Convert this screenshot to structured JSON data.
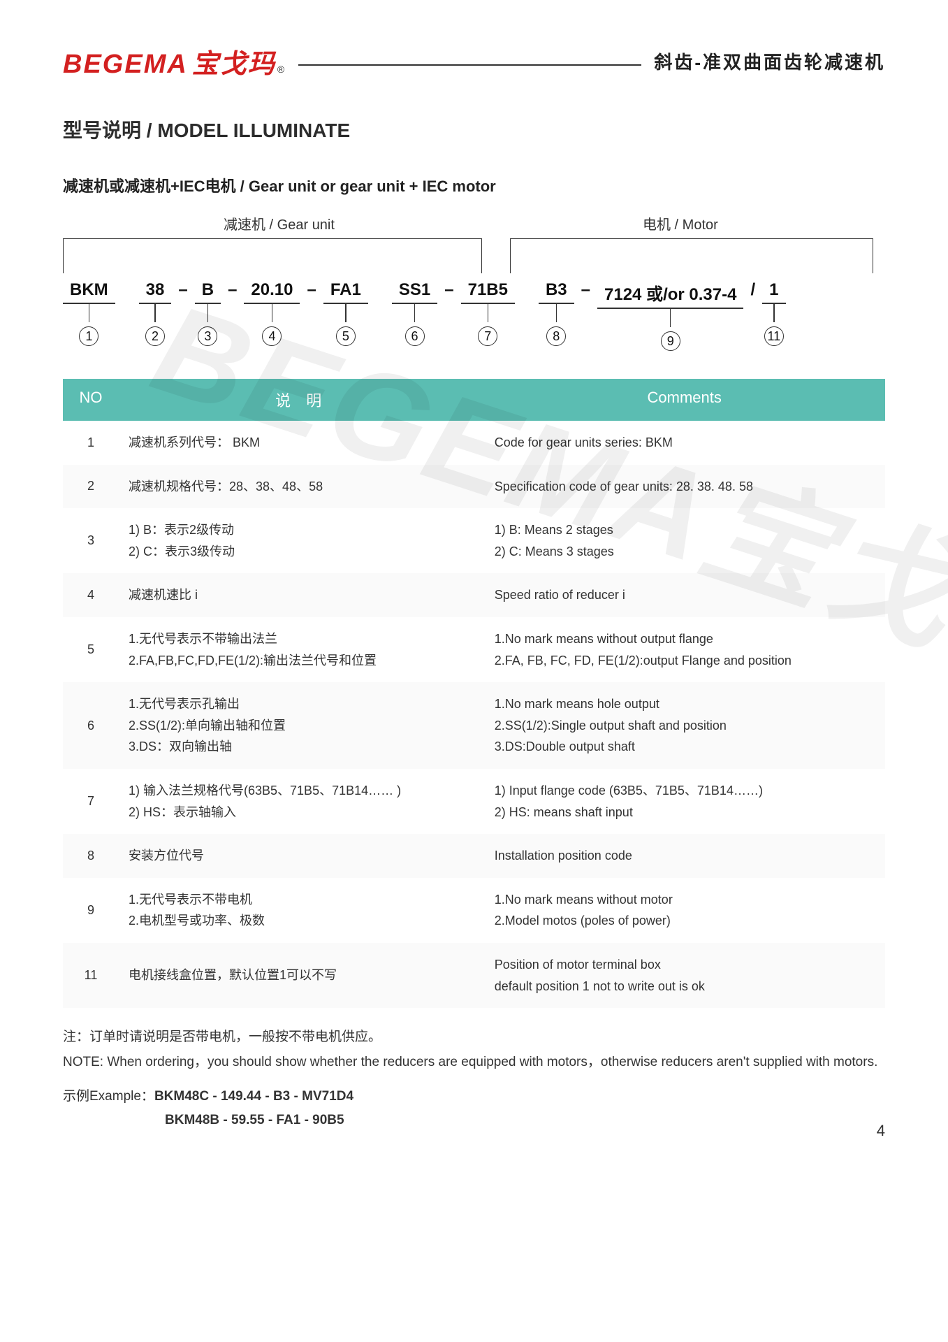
{
  "header": {
    "logo_en": "BEGEMA",
    "logo_cn": "宝戈玛",
    "logo_r": "®",
    "right_text": "斜齿-准双曲面齿轮减速机"
  },
  "section_title": "型号说明 / MODEL ILLUMINATE",
  "sub_title": "减速机或减速机+IEC电机 / Gear unit or gear unit + IEC motor",
  "bracket_labels": {
    "gear_unit": "减速机 / Gear unit",
    "motor": "电机 / Motor"
  },
  "model_parts": [
    {
      "text": "BKM",
      "num": "1"
    },
    {
      "text": "38",
      "num": "2"
    },
    {
      "text": "B",
      "num": "3",
      "sep_before": "–"
    },
    {
      "text": "20.10",
      "num": "4",
      "sep_before": "–"
    },
    {
      "text": "FA1",
      "num": "5",
      "sep_before": "–"
    },
    {
      "text": "SS1",
      "num": "6"
    },
    {
      "text": "71B5",
      "num": "7",
      "sep_before": "–"
    },
    {
      "text": "B3",
      "num": "8"
    },
    {
      "text": "7124 或/or 0.37-4",
      "num": "9",
      "sep_before": "–"
    },
    {
      "text": "1",
      "num": "11",
      "sep_before": "/"
    }
  ],
  "table": {
    "header_no": "NO",
    "header_desc": "说 明",
    "header_comm": "Comments",
    "rows": [
      {
        "no": "1",
        "desc": "减速机系列代号： BKM",
        "comm": "Code for gear units series: BKM"
      },
      {
        "no": "2",
        "desc": "减速机规格代号：28、38、48、58",
        "comm": "Specification code of gear units: 28. 38. 48. 58"
      },
      {
        "no": "3",
        "desc": "1) B：表示2级传动\n2) C：表示3级传动",
        "comm": "1) B: Means 2 stages\n2) C: Means 3 stages"
      },
      {
        "no": "4",
        "desc": "减速机速比 i",
        "comm": "Speed ratio of reducer i"
      },
      {
        "no": "5",
        "desc": "1.无代号表示不带输出法兰\n2.FA,FB,FC,FD,FE(1/2):输出法兰代号和位置",
        "comm": "1.No mark means without output flange\n2.FA, FB, FC, FD, FE(1/2):output Flange and position"
      },
      {
        "no": "6",
        "desc": "1.无代号表示孔输出\n2.SS(1/2):单向输出轴和位置\n3.DS：双向输出轴",
        "comm": "1.No mark means hole output\n2.SS(1/2):Single output shaft and position\n3.DS:Double output shaft"
      },
      {
        "no": "7",
        "desc": "1) 输入法兰规格代号(63B5、71B5、71B14…… )\n2) HS：表示轴输入",
        "comm": "1) Input flange code (63B5、71B5、71B14……)\n2) HS: means shaft input"
      },
      {
        "no": "8",
        "desc": "安装方位代号",
        "comm": "Installation position code"
      },
      {
        "no": "9",
        "desc": "1.无代号表示不带电机\n2.电机型号或功率、极数",
        "comm": "1.No mark means without motor\n2.Model motos (poles of power)"
      },
      {
        "no": "11",
        "desc": "电机接线盒位置，默认位置1可以不写",
        "comm": "Position of motor terminal box\ndefault position 1 not to write out is ok"
      }
    ]
  },
  "note_cn": "注：订单时请说明是否带电机，一般按不带电机供应。",
  "note_en": "NOTE: When ordering，you should show whether the reducers are equipped with motors，otherwise reducers aren't supplied with motors.",
  "example_label": "示例Example：",
  "example_line1": "BKM48C - 149.44 - B3 - MV71D4",
  "example_line2": "BKM48B - 59.55 - FA1 - 90B5",
  "page_number": "4",
  "watermark": "BEGEMA宝戈玛",
  "colors": {
    "brand_red": "#d32020",
    "table_header_bg": "#5bbdb2",
    "table_header_fg": "#ffffff",
    "text": "#333333",
    "row_alt_bg": "#fafafa"
  }
}
